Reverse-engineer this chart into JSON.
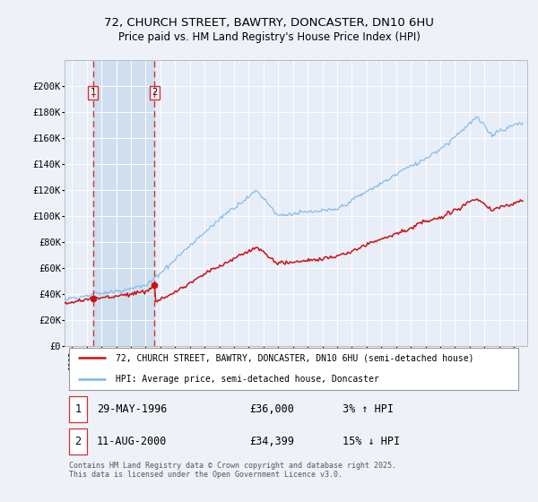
{
  "title": "72, CHURCH STREET, BAWTRY, DONCASTER, DN10 6HU",
  "subtitle": "Price paid vs. HM Land Registry's House Price Index (HPI)",
  "background_color": "#eef2f8",
  "plot_bg_color": "#e8eef8",
  "shaded_region_color": "#d0dff0",
  "grid_color": "#ffffff",
  "legend_entry1": "72, CHURCH STREET, BAWTRY, DONCASTER, DN10 6HU (semi-detached house)",
  "legend_entry2": "HPI: Average price, semi-detached house, Doncaster",
  "transaction1_date": "29-MAY-1996",
  "transaction1_price": "£36,000",
  "transaction1_hpi": "3% ↑ HPI",
  "transaction2_date": "11-AUG-2000",
  "transaction2_price": "£34,399",
  "transaction2_hpi": "15% ↓ HPI",
  "footer": "Contains HM Land Registry data © Crown copyright and database right 2025.\nThis data is licensed under the Open Government Licence v3.0.",
  "ylim": [
    0,
    220000
  ],
  "yticks": [
    0,
    20000,
    40000,
    60000,
    80000,
    100000,
    120000,
    140000,
    160000,
    180000,
    200000
  ],
  "ytick_labels": [
    "£0",
    "£20K",
    "£40K",
    "£60K",
    "£80K",
    "£100K",
    "£120K",
    "£140K",
    "£160K",
    "£180K",
    "£200K"
  ],
  "hpi_color": "#7ab8e8",
  "property_color": "#cc1111",
  "vline_color": "#cc3333",
  "marker_color": "#cc1111",
  "transaction1_x": 1996.42,
  "transaction2_x": 2000.61,
  "xstart": 1994.5,
  "xend": 2025.6
}
